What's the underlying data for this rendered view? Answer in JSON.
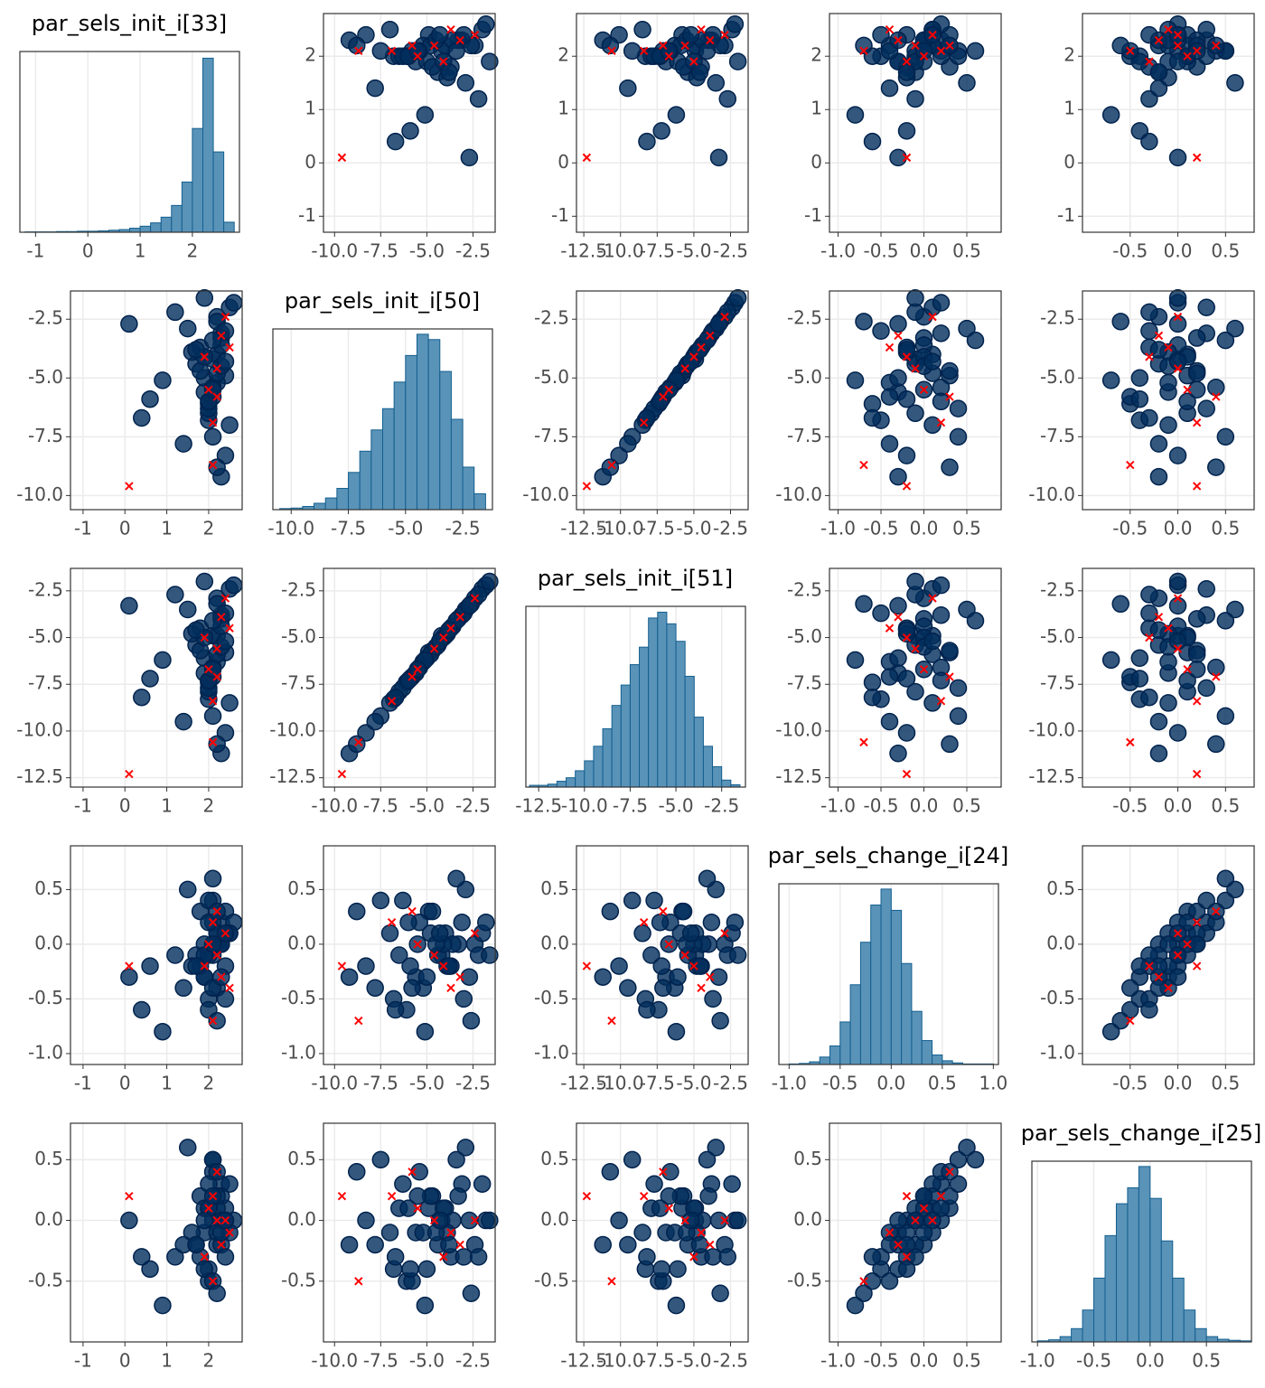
{
  "chart_data": {
    "type": "pairs",
    "parameters": [
      {
        "name": "par_sels_init_i[33]",
        "lim": [
          -1.3,
          2.8
        ],
        "ticks": [
          -1,
          0,
          1,
          2
        ],
        "draws": [
          2.1,
          2.3,
          1.9,
          2.2,
          2.0,
          2.4,
          1.8,
          2.5,
          2.2,
          2.1,
          1.7,
          2.3,
          2.0,
          2.6,
          1.9,
          2.2,
          2.4,
          1.5,
          2.1,
          2.3,
          2.0,
          1.8,
          2.2,
          2.5,
          1.6,
          2.1,
          2.3,
          1.9,
          2.4,
          2.0,
          1.2,
          2.2,
          0.6,
          2.1,
          1.4,
          2.3,
          0.1,
          2.0,
          1.9,
          0.9,
          2.2,
          1.7,
          2.4,
          0.4,
          2.1
        ],
        "divergent": [
          2.2,
          2.0,
          2.3,
          2.1,
          2.4,
          1.9,
          2.2,
          2.5,
          2.1,
          0.1
        ],
        "hist": {
          "xlim": [
            -1.3,
            2.9
          ],
          "xticks": [
            -1,
            0,
            1,
            2
          ],
          "ylim": [
            0,
            540
          ],
          "bins": [
            -1.2,
            -1.0,
            -0.8,
            -0.6,
            -0.4,
            -0.2,
            0,
            0.2,
            0.4,
            0.6,
            0.8,
            1.0,
            1.2,
            1.4,
            1.6,
            1.8,
            2.0,
            2.2,
            2.4,
            2.6,
            2.8
          ],
          "counts": [
            1,
            1,
            1,
            2,
            2,
            3,
            3,
            4,
            6,
            8,
            12,
            18,
            28,
            45,
            80,
            150,
            310,
            520,
            240,
            30
          ]
        }
      },
      {
        "name": "par_sels_init_i[50]",
        "lim": [
          -10.6,
          -1.3
        ],
        "ticks": [
          {
            "value": -10,
            "label": "-10.0"
          },
          {
            "value": -7.5,
            "label": "-7.5"
          },
          {
            "value": -5,
            "label": "-5.0"
          },
          {
            "value": -2.5,
            "label": "-2.5"
          }
        ],
        "draws": [
          -4.2,
          -3.1,
          -5.6,
          -2.4,
          -6.8,
          -4.9,
          -3.7,
          -2.0,
          -5.2,
          -7.5,
          -4.4,
          -3.3,
          -6.1,
          -1.8,
          -5.0,
          -4.0,
          -8.3,
          -2.9,
          -5.8,
          -3.6,
          -6.5,
          -4.7,
          -2.6,
          -7.0,
          -3.9,
          -5.4,
          -9.2,
          -4.1,
          -3.0,
          -6.3,
          -2.2,
          -4.8,
          -5.9,
          -3.4,
          -7.8,
          -4.5,
          -2.7,
          -6.0,
          -1.6,
          -5.1,
          -8.8,
          -3.8,
          -4.3,
          -6.7,
          -5.5
        ],
        "divergent": [
          -4.6,
          -5.5,
          -3.2,
          -6.9,
          -2.4,
          -4.1,
          -5.8,
          -3.7,
          -8.7,
          -9.6
        ],
        "hist": {
          "xlim": [
            -10.8,
            -1.2
          ],
          "xticks": [
            {
              "value": -10,
              "label": "-10.0"
            },
            {
              "value": -7.5,
              "label": "-7.5"
            },
            {
              "value": -5,
              "label": "-5.0"
            },
            {
              "value": -2.5,
              "label": "-2.5"
            }
          ],
          "ylim": [
            0,
            340
          ],
          "bins": [
            -10.5,
            -10,
            -9.5,
            -9,
            -8.5,
            -8,
            -7.5,
            -7,
            -6.5,
            -6,
            -5.5,
            -5,
            -4.5,
            -4,
            -3.5,
            -3,
            -2.5,
            -2,
            -1.5
          ],
          "counts": [
            2,
            3,
            6,
            12,
            22,
            40,
            70,
            110,
            150,
            190,
            240,
            290,
            330,
            320,
            260,
            170,
            80,
            30
          ]
        }
      },
      {
        "name": "par_sels_init_i[51]",
        "lim": [
          -13,
          -1.3
        ],
        "ticks": [
          {
            "value": -12.5,
            "label": "-12.5"
          },
          {
            "value": -10,
            "label": "-10.0"
          },
          {
            "value": -7.5,
            "label": "-7.5"
          },
          {
            "value": -5,
            "label": "-5.0"
          },
          {
            "value": -2.5,
            "label": "-2.5"
          }
        ],
        "draws": [
          -4.9,
          -3.8,
          -6.9,
          -2.9,
          -8.3,
          -5.8,
          -4.5,
          -2.4,
          -6.3,
          -9.2,
          -5.4,
          -4.0,
          -7.4,
          -2.2,
          -6.1,
          -4.9,
          -10.1,
          -3.5,
          -7.1,
          -4.4,
          -7.9,
          -5.7,
          -3.2,
          -8.5,
          -4.8,
          -6.6,
          -11.2,
          -5.0,
          -3.7,
          -7.7,
          -2.7,
          -5.9,
          -7.2,
          -4.1,
          -9.5,
          -5.5,
          -3.3,
          -7.3,
          -2.0,
          -6.2,
          -10.7,
          -4.6,
          -5.2,
          -8.2,
          -6.7
        ],
        "divergent": [
          -5.6,
          -6.7,
          -3.9,
          -8.4,
          -2.9,
          -5.0,
          -7.1,
          -4.5,
          -10.6,
          -12.3
        ],
        "hist": {
          "xlim": [
            -13.2,
            -1.2
          ],
          "xticks": [
            {
              "value": -12.5,
              "label": "-12.5"
            },
            {
              "value": -10,
              "label": "-10.0"
            },
            {
              "value": -7.5,
              "label": "-7.5"
            },
            {
              "value": -5,
              "label": "-5.0"
            },
            {
              "value": -2.5,
              "label": "-2.5"
            }
          ],
          "ylim": [
            0,
            310
          ],
          "bins": [
            -13,
            -12.5,
            -12,
            -11.5,
            -11,
            -10.5,
            -10,
            -9.5,
            -9,
            -8.5,
            -8,
            -7.5,
            -7,
            -6.5,
            -6,
            -5.5,
            -5,
            -4.5,
            -4,
            -3.5,
            -3,
            -2.5,
            -2,
            -1.5
          ],
          "counts": [
            3,
            3,
            5,
            10,
            16,
            28,
            45,
            70,
            100,
            140,
            175,
            210,
            240,
            290,
            300,
            280,
            250,
            190,
            120,
            70,
            35,
            12,
            4
          ]
        }
      },
      {
        "name": "par_sels_change_i[24]",
        "lim": [
          -1.1,
          0.9
        ],
        "ticks": [
          {
            "value": -1,
            "label": "-1.0"
          },
          {
            "value": -0.5,
            "label": "-0.5"
          },
          {
            "value": 0,
            "label": "0.0"
          },
          {
            "value": 0.5,
            "label": "0.5"
          }
        ],
        "draws": [
          -0.1,
          0.2,
          -0.3,
          0.0,
          -0.5,
          0.3,
          -0.2,
          0.1,
          -0.4,
          0.4,
          -0.1,
          0.0,
          -0.6,
          0.2,
          -0.3,
          0.1,
          -0.2,
          0.5,
          -0.4,
          0.0,
          -0.1,
          0.3,
          -0.7,
          0.1,
          -0.2,
          0.2,
          -0.3,
          0.0,
          -0.5,
          0.4,
          -0.1,
          0.1,
          -0.2,
          0.6,
          -0.4,
          0.0,
          -0.3,
          0.2,
          -0.1,
          -0.8,
          0.3,
          -0.2,
          0.1,
          -0.6,
          0.0
        ],
        "divergent": [
          -0.1,
          0.0,
          -0.3,
          0.2,
          0.1,
          -0.2,
          0.3,
          -0.4,
          -0.7,
          -0.2
        ],
        "hist": {
          "xlim": [
            -1.1,
            1.05
          ],
          "xticks": [
            {
              "value": -1,
              "label": "-1.0"
            },
            {
              "value": -0.5,
              "label": "-0.5"
            },
            {
              "value": 0,
              "label": "0.0"
            },
            {
              "value": 0.5,
              "label": "0.5"
            },
            {
              "value": 1,
              "label": "1.0"
            }
          ],
          "ylim": [
            0,
            340
          ],
          "bins": [
            -1.0,
            -0.9,
            -0.8,
            -0.7,
            -0.6,
            -0.5,
            -0.4,
            -0.3,
            -0.2,
            -0.1,
            0,
            0.1,
            0.2,
            0.3,
            0.4,
            0.5,
            0.6,
            0.7,
            0.8,
            0.9,
            1.0
          ],
          "counts": [
            1,
            2,
            5,
            14,
            35,
            80,
            150,
            230,
            300,
            330,
            290,
            190,
            100,
            45,
            18,
            7,
            3,
            1,
            1,
            1
          ]
        }
      },
      {
        "name": "par_sels_change_i[25]",
        "lim": [
          -1.0,
          0.8
        ],
        "ticks": [
          {
            "value": -0.5,
            "label": "-0.5"
          },
          {
            "value": 0,
            "label": "0.0"
          },
          {
            "value": 0.5,
            "label": "0.5"
          }
        ],
        "draws": [
          0.0,
          0.3,
          -0.1,
          -0.2,
          -0.4,
          0.1,
          -0.3,
          0.3,
          -0.1,
          0.5,
          -0.2,
          0.2,
          -0.5,
          0.0,
          -0.4,
          0.1,
          0.0,
          0.6,
          -0.5,
          0.0,
          0.1,
          0.2,
          -0.6,
          -0.1,
          -0.1,
          0.4,
          -0.2,
          0.1,
          -0.3,
          0.3,
          -0.3,
          0.2,
          -0.4,
          0.5,
          -0.2,
          -0.1,
          0.0,
          0.1,
          0.0,
          -0.7,
          0.4,
          -0.2,
          0.0,
          -0.3,
          0.2
        ],
        "divergent": [
          0.0,
          0.1,
          -0.2,
          0.2,
          0.0,
          -0.3,
          0.4,
          -0.1,
          -0.5,
          0.2
        ],
        "hist": {
          "xlim": [
            -1.05,
            0.9
          ],
          "xticks": [
            {
              "value": -1,
              "label": "-1.0"
            },
            {
              "value": -0.5,
              "label": "-0.5"
            },
            {
              "value": 0,
              "label": "0.0"
            },
            {
              "value": 0.5,
              "label": "0.5"
            }
          ],
          "ylim": [
            0,
            340
          ],
          "bins": [
            -1.0,
            -0.9,
            -0.8,
            -0.7,
            -0.6,
            -0.5,
            -0.4,
            -0.3,
            -0.2,
            -0.1,
            0,
            0.1,
            0.2,
            0.3,
            0.4,
            0.5,
            0.6,
            0.7,
            0.8,
            0.9
          ],
          "counts": [
            2,
            4,
            10,
            25,
            60,
            120,
            200,
            260,
            290,
            330,
            270,
            190,
            120,
            60,
            25,
            10,
            5,
            3,
            2
          ]
        }
      }
    ]
  }
}
